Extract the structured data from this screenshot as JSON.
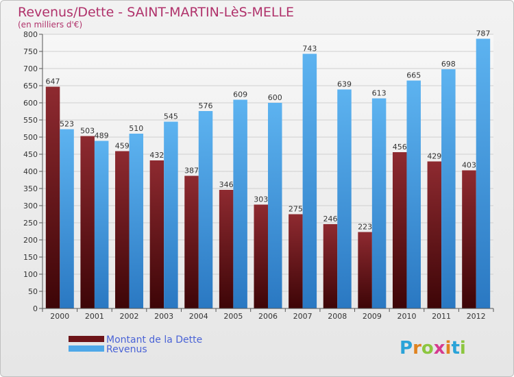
{
  "title": "Revenus/Dette - SAINT-MARTIN-LèS-MELLE",
  "subtitle": "(en milliers d'€)",
  "logo": {
    "letters": [
      "P",
      "r",
      "o",
      "x",
      "i",
      "t",
      "i"
    ],
    "colors": [
      "#2aa3d8",
      "#e0831f",
      "#8cc63f",
      "#d63a8f",
      "#e0831f",
      "#2aa3d8",
      "#8cc63f"
    ]
  },
  "chart_data": {
    "type": "bar",
    "categories": [
      "2000",
      "2001",
      "2002",
      "2003",
      "2004",
      "2005",
      "2006",
      "2007",
      "2008",
      "2009",
      "2010",
      "2011",
      "2012"
    ],
    "series": [
      {
        "name": "Montant de la Dette",
        "color": "#7a1f23",
        "values": [
          647,
          503,
          459,
          432,
          387,
          346,
          303,
          275,
          246,
          223,
          456,
          429,
          403
        ]
      },
      {
        "name": "Revenus",
        "color": "#4fa8e8",
        "values": [
          523,
          489,
          510,
          545,
          576,
          609,
          600,
          743,
          639,
          613,
          665,
          698,
          787
        ]
      }
    ],
    "ylim": [
      0,
      800
    ],
    "yticks": [
      0,
      50,
      100,
      150,
      200,
      250,
      300,
      350,
      400,
      450,
      500,
      550,
      600,
      650,
      700,
      750,
      800
    ],
    "grid": true,
    "legend": "bottom-left"
  }
}
